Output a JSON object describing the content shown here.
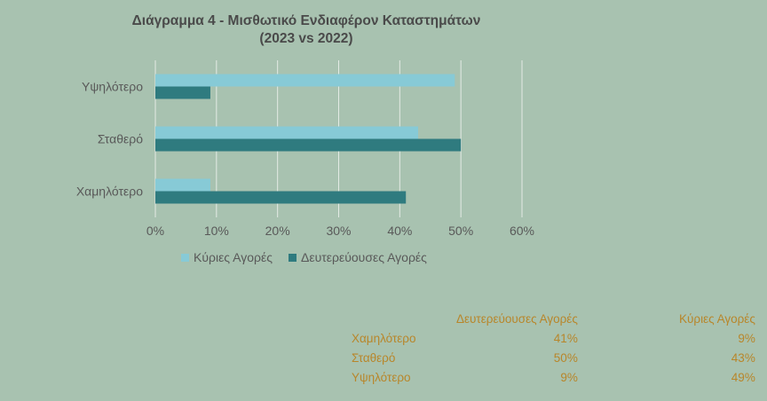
{
  "chart_data": {
    "type": "bar",
    "orientation": "horizontal",
    "title": "Διάγραμμα 4 - Μισθωτικό Ενδιαφέρον Καταστημάτων",
    "subtitle": "(2023 vs 2022)",
    "categories": [
      "Υψηλότερο",
      "Σταθερό",
      "Χαμηλότερο"
    ],
    "series": [
      {
        "name": "Κύριες Αγορές",
        "values": [
          49,
          43,
          9
        ],
        "color": "#87cad6"
      },
      {
        "name": "Δευτερεύουσες Αγορές",
        "values": [
          9,
          50,
          41
        ],
        "color": "#2f7b7f"
      }
    ],
    "xlim": [
      0,
      60
    ],
    "xticks": [
      "0%",
      "10%",
      "20%",
      "30%",
      "40%",
      "50%",
      "60%"
    ],
    "grid": true,
    "legend": "bottom"
  },
  "table": {
    "headers": [
      "",
      "Δευτερεύουσες Αγορές",
      "Κύριες Αγορές"
    ],
    "rows": [
      [
        "Χαμηλότερο",
        "41%",
        "9%"
      ],
      [
        "Σταθερό",
        "50%",
        "43%"
      ],
      [
        "Υψηλότερο",
        "9%",
        "49%"
      ]
    ]
  }
}
